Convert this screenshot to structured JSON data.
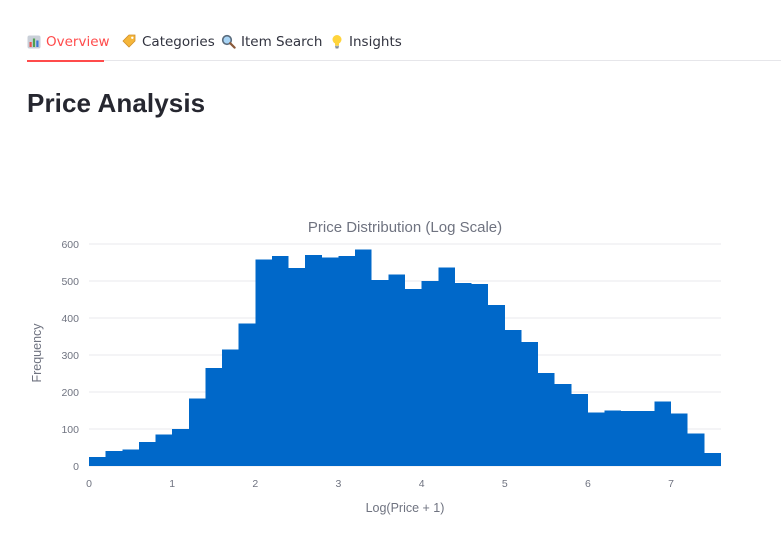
{
  "tabs": [
    {
      "label": "Overview",
      "icon": "bar-chart-icon",
      "active": true
    },
    {
      "label": "Categories",
      "icon": "tag-icon",
      "active": false
    },
    {
      "label": "Item Search",
      "icon": "magnifier-icon",
      "active": false
    },
    {
      "label": "Insights",
      "icon": "lightbulb-icon",
      "active": false
    }
  ],
  "page": {
    "title": "Price Analysis"
  },
  "colors": {
    "accent": "#ff4b4b",
    "bar": "#0068c9",
    "text": "#31333f",
    "grid": "#e8e8ee"
  },
  "chart_data": {
    "type": "bar",
    "subtype": "histogram",
    "title": "Price Distribution (Log Scale)",
    "xlabel": "Log(Price + 1)",
    "ylabel": "Frequency",
    "xlim": [
      0,
      7.6
    ],
    "ylim": [
      0,
      600
    ],
    "grid": true,
    "x_ticks": [
      0,
      1,
      2,
      3,
      4,
      5,
      6,
      7
    ],
    "y_ticks": [
      0,
      100,
      200,
      300,
      400,
      500,
      600
    ],
    "bin_width": 0.2,
    "bin_starts": [
      0,
      0.2,
      0.4,
      0.6,
      0.8,
      1.0,
      1.2,
      1.4,
      1.6,
      1.8,
      2.0,
      2.2,
      2.4,
      2.6,
      2.8,
      3.0,
      3.2,
      3.4,
      3.6,
      3.8,
      4.0,
      4.2,
      4.4,
      4.6,
      4.8,
      5.0,
      5.2,
      5.4,
      5.6,
      5.8,
      6.0,
      6.2,
      6.4,
      6.6,
      6.8,
      7.0,
      7.2,
      7.4
    ],
    "values": [
      24,
      40,
      45,
      65,
      85,
      100,
      183,
      265,
      315,
      385,
      558,
      568,
      535,
      570,
      563,
      568,
      585,
      503,
      517,
      478,
      500,
      537,
      495,
      492,
      435,
      367,
      335,
      252,
      222,
      195,
      145,
      150,
      148,
      148,
      175,
      142,
      88,
      35
    ]
  }
}
